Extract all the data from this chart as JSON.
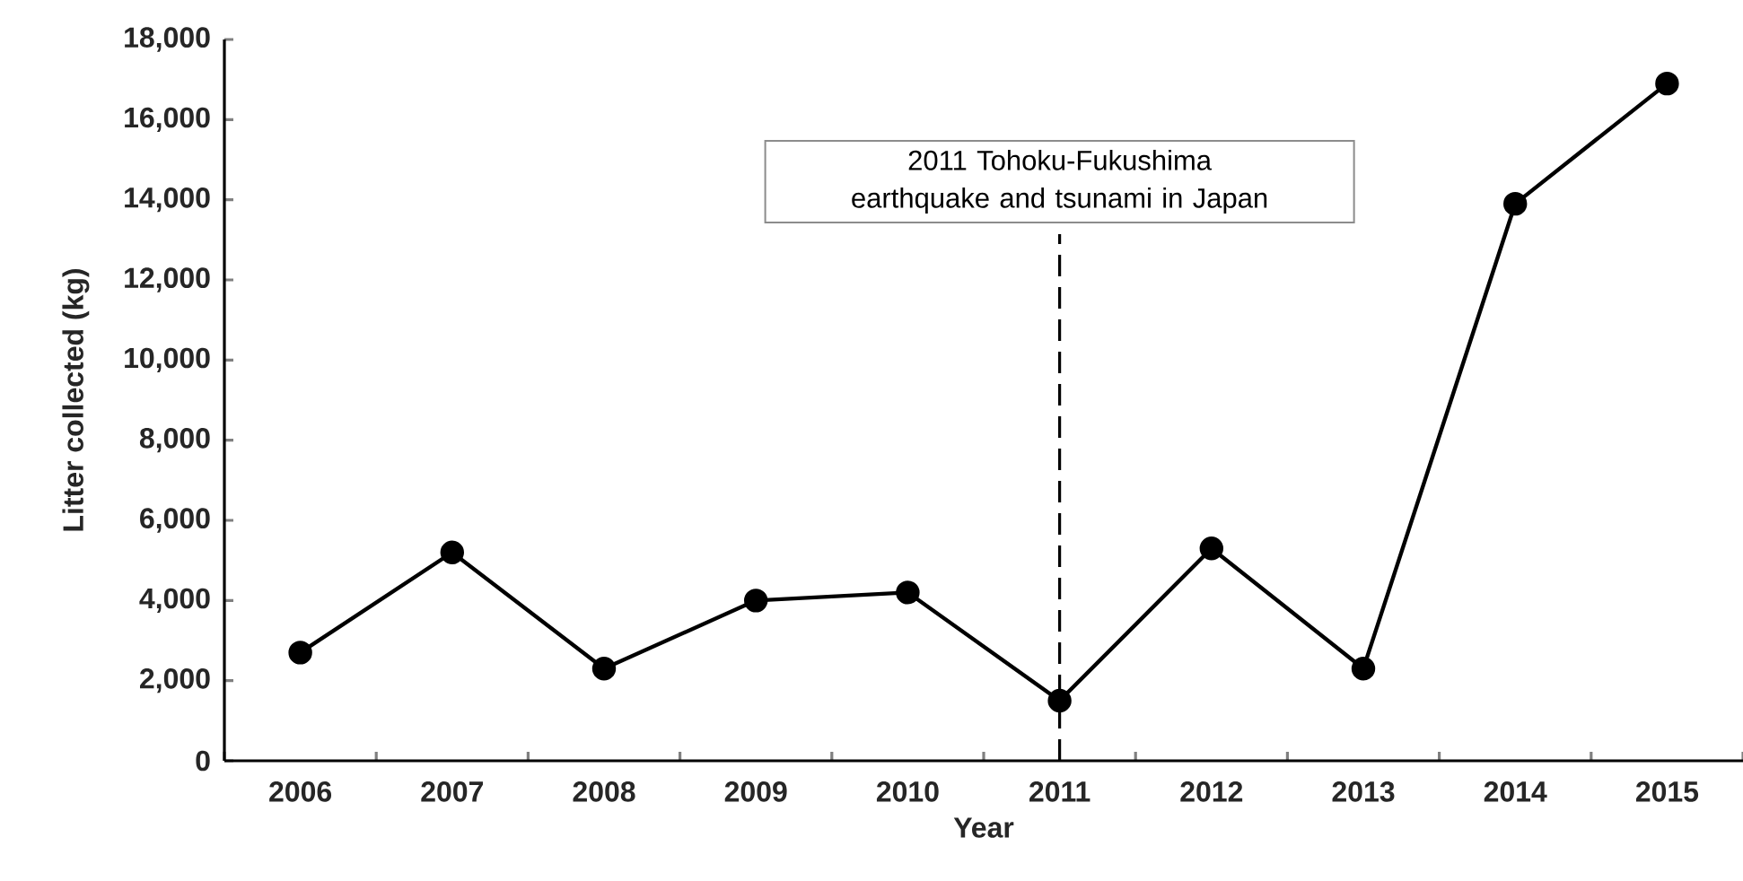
{
  "chart_data": {
    "type": "line",
    "xlabel": "Year",
    "ylabel": "Litter collected (kg)",
    "categories": [
      "2006",
      "2007",
      "2008",
      "2009",
      "2010",
      "2011",
      "2012",
      "2013",
      "2014",
      "2015"
    ],
    "values": [
      2700,
      5200,
      2300,
      4000,
      4200,
      1500,
      5300,
      2300,
      13900,
      16900
    ],
    "color": "#000000",
    "marker": "circle",
    "line_style": "solid",
    "ylim": [
      0,
      18000
    ],
    "yticks": [
      {
        "value": 0,
        "label": "0"
      },
      {
        "value": 2000,
        "label": "2,000"
      },
      {
        "value": 4000,
        "label": "4,000"
      },
      {
        "value": 6000,
        "label": "6,000"
      },
      {
        "value": 8000,
        "label": "8,000"
      },
      {
        "value": 10000,
        "label": "10,000"
      },
      {
        "value": 12000,
        "label": "12,000"
      },
      {
        "value": 14000,
        "label": "14,000"
      },
      {
        "value": 16000,
        "label": "16,000"
      },
      {
        "value": 18000,
        "label": "18,000"
      }
    ],
    "grid": false,
    "ref_lines": [
      {
        "axis": "x",
        "value": "2011",
        "label": "2011 Tohoku-Fukushima  earthquake and tsunami in Japan",
        "line_style": "dashed",
        "color": "#000000"
      }
    ]
  }
}
